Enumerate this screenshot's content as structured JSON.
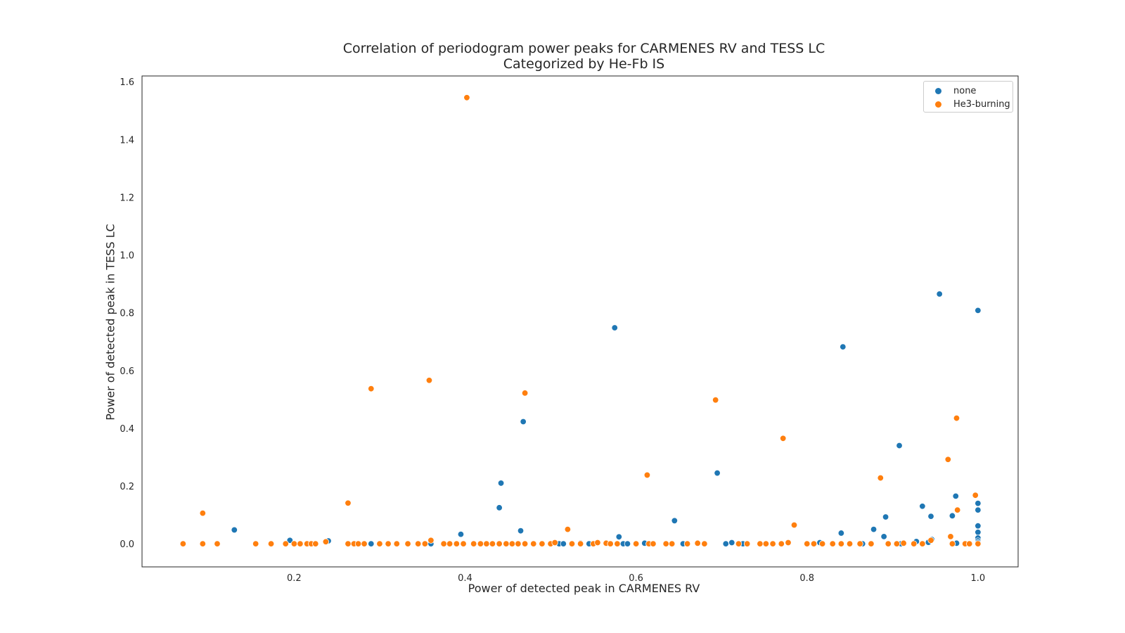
{
  "chart_data": {
    "type": "scatter",
    "title": "Correlation of periodogram power peaks for CARMENES RV and TESS LC",
    "subtitle": "Categorized by He-Fb IS",
    "xlabel": "Power of detected peak in CARMENES RV",
    "ylabel": "Power of detected peak in TESS LC",
    "xlim": [
      0.022,
      1.047
    ],
    "ylim": [
      -0.08,
      1.62
    ],
    "xticks": [
      "0.2",
      "0.4",
      "0.6",
      "0.8",
      "1.0"
    ],
    "yticks": [
      "0.0",
      "0.2",
      "0.4",
      "0.6",
      "0.8",
      "1.0",
      "1.2",
      "1.4",
      "1.6"
    ],
    "grid": false,
    "legend_position": "top-right",
    "series": [
      {
        "name": "none",
        "color": "#1f77b4",
        "points": [
          [
            0.13,
            0.048
          ],
          [
            0.195,
            0.012
          ],
          [
            0.24,
            0.01
          ],
          [
            0.29,
            0.0
          ],
          [
            0.36,
            0.0
          ],
          [
            0.395,
            0.033
          ],
          [
            0.44,
            0.125
          ],
          [
            0.442,
            0.21
          ],
          [
            0.465,
            0.045
          ],
          [
            0.468,
            0.423
          ],
          [
            0.51,
            0.0
          ],
          [
            0.515,
            0.0
          ],
          [
            0.535,
            0.002
          ],
          [
            0.545,
            0.0
          ],
          [
            0.575,
            0.748
          ],
          [
            0.58,
            0.024
          ],
          [
            0.585,
            0.0
          ],
          [
            0.59,
            0.0
          ],
          [
            0.61,
            0.002
          ],
          [
            0.645,
            0.08
          ],
          [
            0.655,
            0.0
          ],
          [
            0.66,
            0.0
          ],
          [
            0.695,
            0.245
          ],
          [
            0.705,
            0.0
          ],
          [
            0.712,
            0.004
          ],
          [
            0.725,
            0.0
          ],
          [
            0.73,
            0.0
          ],
          [
            0.815,
            0.004
          ],
          [
            0.84,
            0.037
          ],
          [
            0.842,
            0.682
          ],
          [
            0.865,
            0.0
          ],
          [
            0.878,
            0.05
          ],
          [
            0.89,
            0.025
          ],
          [
            0.892,
            0.093
          ],
          [
            0.895,
            0.0
          ],
          [
            0.908,
            0.34
          ],
          [
            0.91,
            0.0
          ],
          [
            0.928,
            0.008
          ],
          [
            0.935,
            0.13
          ],
          [
            0.942,
            0.005
          ],
          [
            0.945,
            0.095
          ],
          [
            0.946,
            0.015
          ],
          [
            0.955,
            0.865
          ],
          [
            0.97,
            0.097
          ],
          [
            0.974,
            0.165
          ],
          [
            0.975,
            0.002
          ],
          [
            1.0,
            0.808
          ],
          [
            1.0,
            0.14
          ],
          [
            1.0,
            0.117
          ],
          [
            1.0,
            0.062
          ],
          [
            1.0,
            0.04
          ],
          [
            1.0,
            0.02
          ],
          [
            1.0,
            0.01
          ],
          [
            1.0,
            0.004
          ],
          [
            1.0,
            0.0
          ]
        ]
      },
      {
        "name": "He3-burning",
        "color": "#ff7f0e",
        "points": [
          [
            0.07,
            0.0
          ],
          [
            0.093,
            0.106
          ],
          [
            0.093,
            0.0
          ],
          [
            0.11,
            0.0
          ],
          [
            0.155,
            0.0
          ],
          [
            0.173,
            0.0
          ],
          [
            0.19,
            0.0
          ],
          [
            0.2,
            0.0
          ],
          [
            0.207,
            0.0
          ],
          [
            0.215,
            0.0
          ],
          [
            0.22,
            0.0
          ],
          [
            0.225,
            0.0
          ],
          [
            0.237,
            0.007
          ],
          [
            0.263,
            0.141
          ],
          [
            0.263,
            0.0
          ],
          [
            0.27,
            0.0
          ],
          [
            0.275,
            0.0
          ],
          [
            0.282,
            0.0
          ],
          [
            0.29,
            0.537
          ],
          [
            0.3,
            0.0
          ],
          [
            0.31,
            0.0
          ],
          [
            0.32,
            0.0
          ],
          [
            0.333,
            0.0
          ],
          [
            0.345,
            0.0
          ],
          [
            0.353,
            0.0
          ],
          [
            0.358,
            0.566
          ],
          [
            0.36,
            0.012
          ],
          [
            0.375,
            0.0
          ],
          [
            0.382,
            0.0
          ],
          [
            0.39,
            0.0
          ],
          [
            0.398,
            0.0
          ],
          [
            0.402,
            1.545
          ],
          [
            0.41,
            0.0
          ],
          [
            0.418,
            0.0
          ],
          [
            0.425,
            0.0
          ],
          [
            0.432,
            0.0
          ],
          [
            0.44,
            0.0
          ],
          [
            0.448,
            0.0
          ],
          [
            0.455,
            0.0
          ],
          [
            0.462,
            0.0
          ],
          [
            0.47,
            0.522
          ],
          [
            0.47,
            0.0
          ],
          [
            0.48,
            0.0
          ],
          [
            0.49,
            0.0
          ],
          [
            0.5,
            0.0
          ],
          [
            0.505,
            0.004
          ],
          [
            0.52,
            0.05
          ],
          [
            0.525,
            0.0
          ],
          [
            0.535,
            0.0
          ],
          [
            0.55,
            0.0
          ],
          [
            0.555,
            0.004
          ],
          [
            0.565,
            0.002
          ],
          [
            0.57,
            0.0
          ],
          [
            0.578,
            0.0
          ],
          [
            0.6,
            0.0
          ],
          [
            0.613,
            0.238
          ],
          [
            0.615,
            0.0
          ],
          [
            0.62,
            0.0
          ],
          [
            0.635,
            0.0
          ],
          [
            0.642,
            0.0
          ],
          [
            0.66,
            0.0
          ],
          [
            0.672,
            0.002
          ],
          [
            0.68,
            0.0
          ],
          [
            0.693,
            0.498
          ],
          [
            0.72,
            0.0
          ],
          [
            0.73,
            0.0
          ],
          [
            0.745,
            0.0
          ],
          [
            0.752,
            0.0
          ],
          [
            0.76,
            0.0
          ],
          [
            0.77,
            0.0
          ],
          [
            0.772,
            0.365
          ],
          [
            0.778,
            0.004
          ],
          [
            0.785,
            0.065
          ],
          [
            0.8,
            0.0
          ],
          [
            0.808,
            0.0
          ],
          [
            0.818,
            0.0
          ],
          [
            0.83,
            0.0
          ],
          [
            0.84,
            0.0
          ],
          [
            0.85,
            0.0
          ],
          [
            0.862,
            0.0
          ],
          [
            0.875,
            0.0
          ],
          [
            0.886,
            0.228
          ],
          [
            0.895,
            0.0
          ],
          [
            0.905,
            0.0
          ],
          [
            0.913,
            0.002
          ],
          [
            0.925,
            0.0
          ],
          [
            0.935,
            0.0
          ],
          [
            0.945,
            0.012
          ],
          [
            0.965,
            0.292
          ],
          [
            0.968,
            0.025
          ],
          [
            0.97,
            0.0
          ],
          [
            0.975,
            0.435
          ],
          [
            0.976,
            0.117
          ],
          [
            0.985,
            0.0
          ],
          [
            0.99,
            0.0
          ],
          [
            0.997,
            0.168
          ],
          [
            1.0,
            0.0
          ]
        ]
      }
    ]
  }
}
